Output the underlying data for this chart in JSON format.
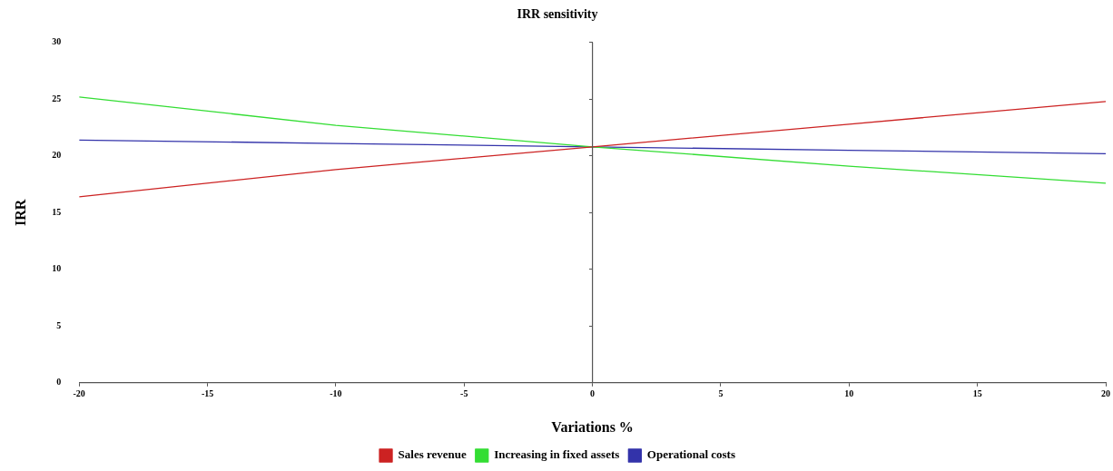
{
  "chart_data": {
    "type": "line",
    "title": "IRR sensitivity",
    "xlabel": "Variations %",
    "ylabel": "IRR",
    "x": [
      -20,
      -10,
      0,
      10,
      20
    ],
    "series": [
      {
        "name": "Sales revenue",
        "color": "#cc2222",
        "values": [
          16.4,
          18.8,
          20.8,
          22.8,
          24.8
        ]
      },
      {
        "name": "Increasing in fixed assets",
        "color": "#33dd33",
        "values": [
          25.2,
          22.7,
          20.8,
          19.1,
          17.6
        ]
      },
      {
        "name": "Operational costs",
        "color": "#3333aa",
        "values": [
          21.4,
          21.1,
          20.8,
          20.5,
          20.2
        ]
      }
    ],
    "xlim": [
      -20,
      20
    ],
    "xticks": [
      -20,
      -15,
      -10,
      -5,
      0,
      5,
      10,
      15,
      20
    ],
    "ylim": [
      0,
      30
    ],
    "yticks": [
      0,
      5,
      10,
      15,
      20,
      25,
      30
    ],
    "ref_lines": [
      {
        "axis": "x",
        "value": 0,
        "color": "#555555"
      }
    ],
    "grid": false,
    "legend": "bottom",
    "marker": "none",
    "line_style": "solid"
  }
}
